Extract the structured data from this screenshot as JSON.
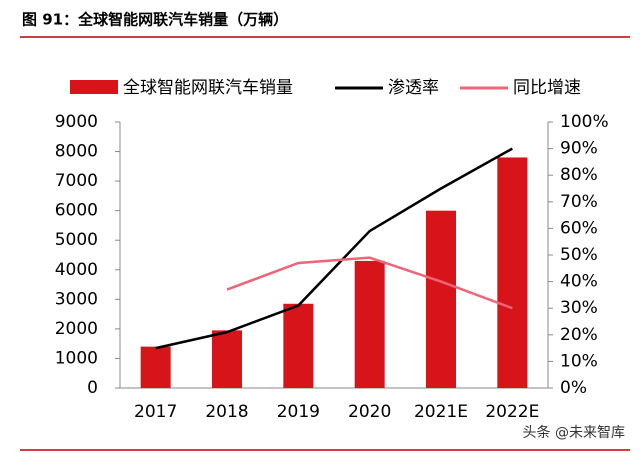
{
  "header": {
    "title": "图 91：全球智能网联汽车销量（万辆）"
  },
  "watermark": "头条 @未来智库",
  "chart_data": {
    "type": "combo",
    "categories": [
      "2017",
      "2018",
      "2019",
      "2020",
      "2021E",
      "2022E"
    ],
    "series": [
      {
        "name": "全球智能网联汽车销量",
        "type": "bar",
        "color": "#d7141a",
        "values": [
          1400,
          1950,
          2850,
          4300,
          6000,
          7800
        ]
      },
      {
        "name": "渗透率",
        "type": "line",
        "axis": "y2",
        "color": "#000000",
        "values": [
          15,
          21,
          31,
          59,
          75,
          90
        ]
      },
      {
        "name": "同比增速",
        "type": "line",
        "axis": "y2",
        "color": "#f06478",
        "values": [
          null,
          37,
          47,
          49,
          40,
          30
        ]
      }
    ],
    "ylim": [
      0,
      9000
    ],
    "yticks": [
      0,
      1000,
      2000,
      3000,
      4000,
      5000,
      6000,
      7000,
      8000,
      9000
    ],
    "y2lim": [
      0,
      100
    ],
    "y2ticks": [
      {
        "value": 0,
        "label": "0%"
      },
      {
        "value": 10,
        "label": "10%"
      },
      {
        "value": 20,
        "label": "20%"
      },
      {
        "value": 30,
        "label": "30%"
      },
      {
        "value": 40,
        "label": "40%"
      },
      {
        "value": 50,
        "label": "50%"
      },
      {
        "value": 60,
        "label": "60%"
      },
      {
        "value": 70,
        "label": "70%"
      },
      {
        "value": 80,
        "label": "80%"
      },
      {
        "value": 90,
        "label": "90%"
      },
      {
        "value": 100,
        "label": "100%"
      }
    ],
    "grid": false
  }
}
